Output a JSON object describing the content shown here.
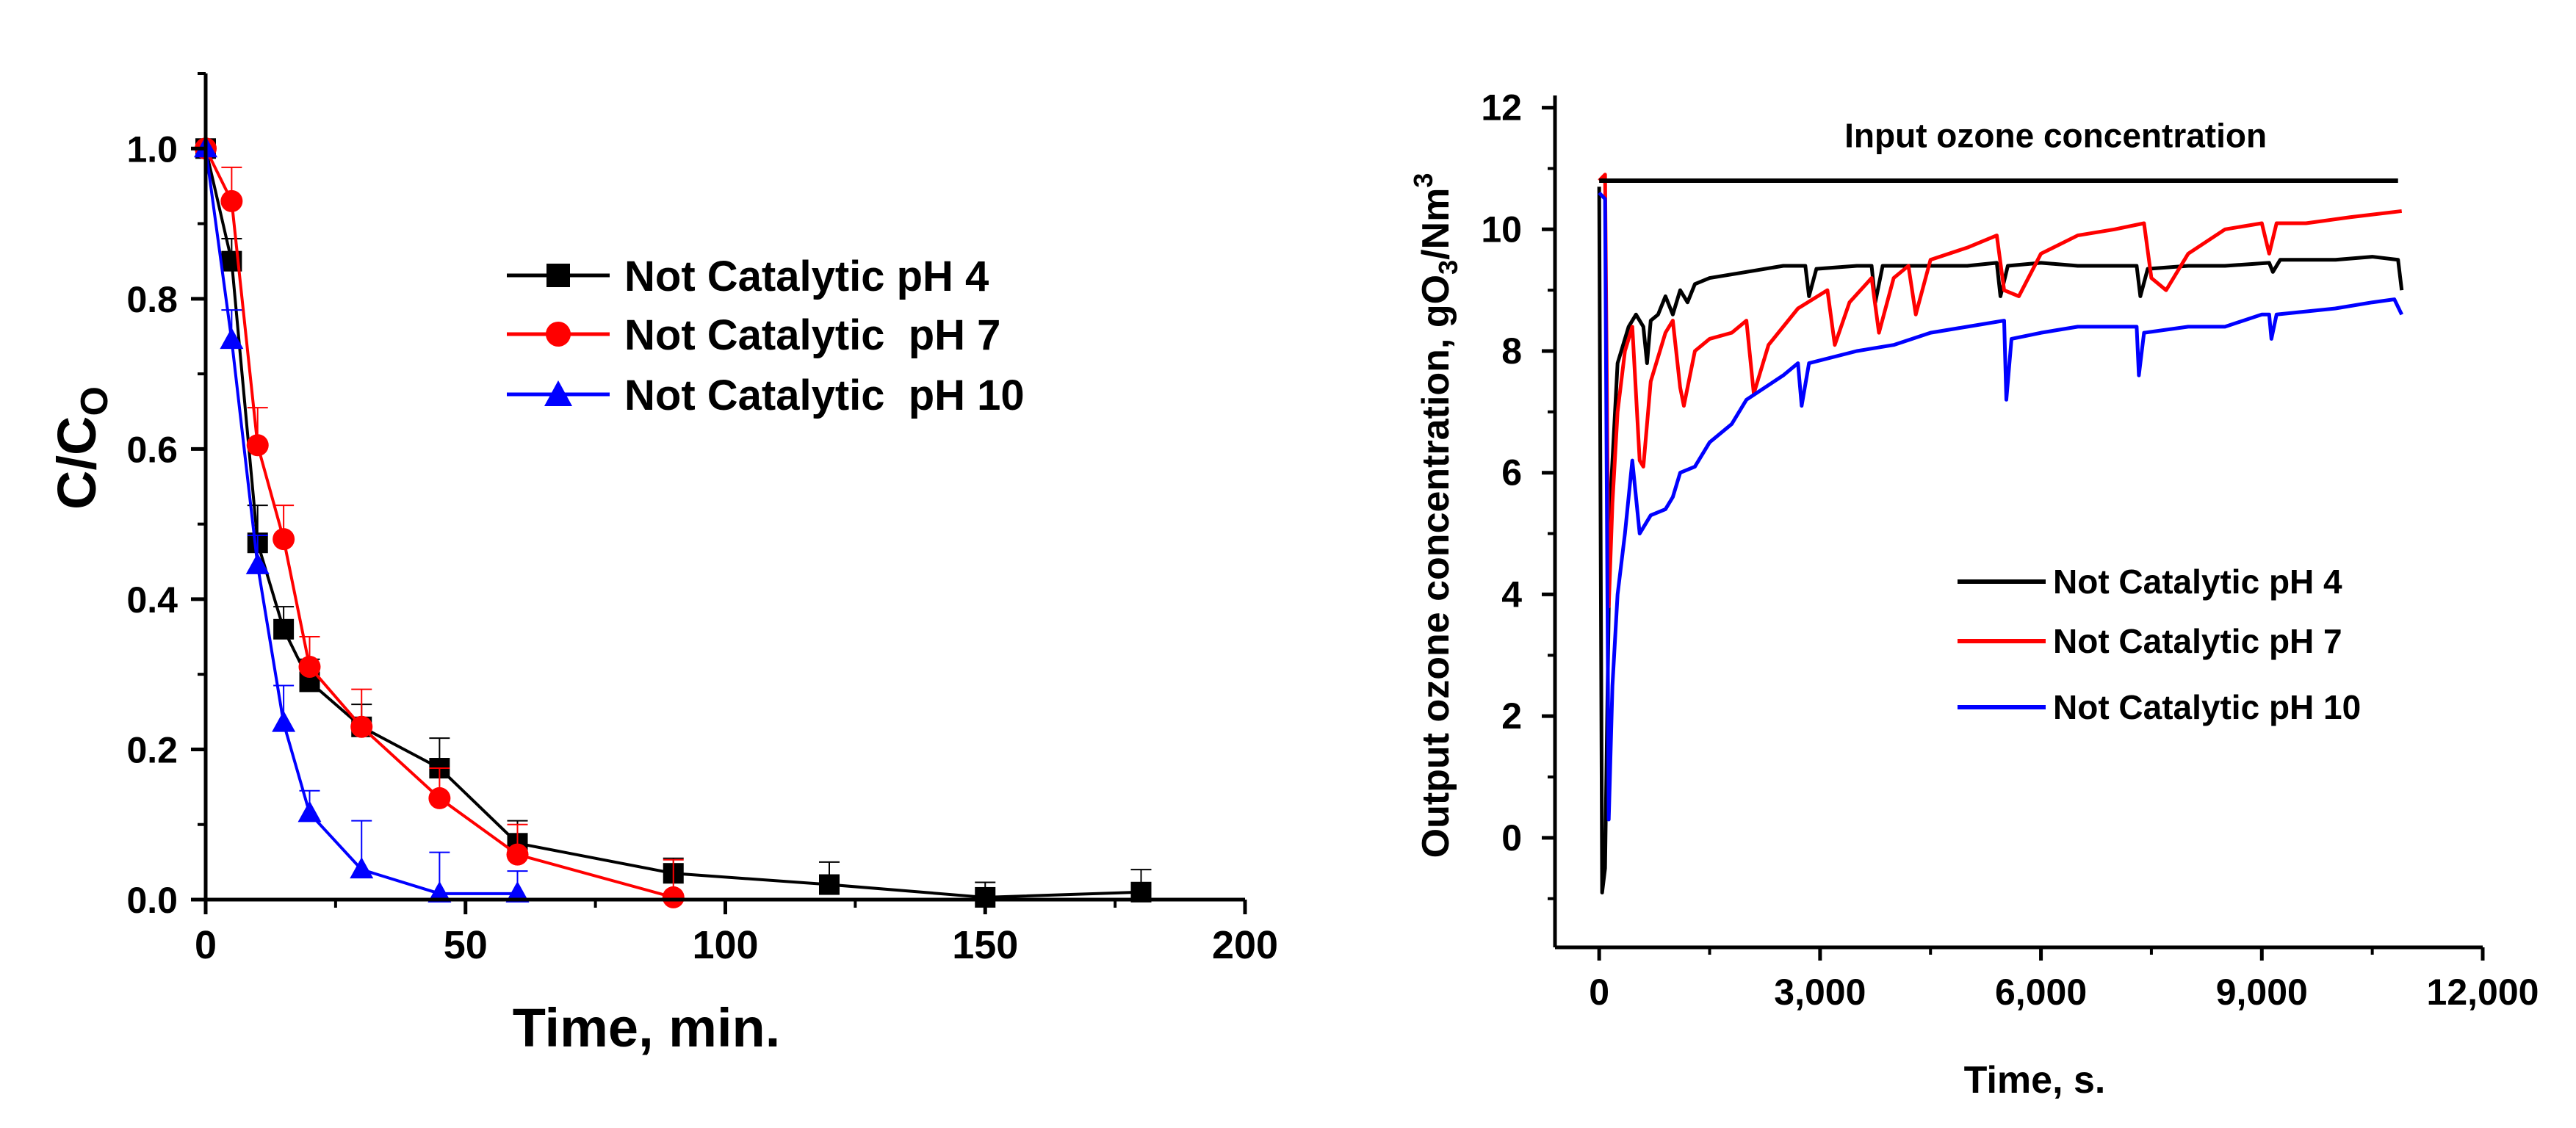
{
  "chart_data": [
    {
      "type": "line",
      "title": "",
      "xlabel": "Time, min.",
      "ylabel": "C/C",
      "ylabel_sub": "O",
      "xlim": [
        0,
        200
      ],
      "ylim": [
        0,
        1.1
      ],
      "x_ticks": [
        0,
        50,
        100,
        150,
        200
      ],
      "x_tick_labels": [
        "0",
        "50",
        "100",
        "150",
        "200"
      ],
      "y_ticks": [
        0,
        0.2,
        0.4,
        0.6,
        0.8,
        1.0
      ],
      "y_tick_labels": [
        "0.0",
        "0.2",
        "0.4",
        "0.6",
        "0.8",
        "1.0"
      ],
      "grid": false,
      "legend_position": "upper-right",
      "series": [
        {
          "name": "Not Catalytic pH 4",
          "color": "#000000",
          "marker": "square",
          "x": [
            0,
            5,
            10,
            15,
            20,
            30,
            45,
            60,
            90,
            120,
            150,
            180
          ],
          "y": [
            1.0,
            0.85,
            0.475,
            0.36,
            0.29,
            0.23,
            0.175,
            0.075,
            0.035,
            0.02,
            0.003,
            0.01
          ],
          "error": [
            0.0,
            0.03,
            0.05,
            0.03,
            0.03,
            0.03,
            0.04,
            0.03,
            0.02,
            0.03,
            0.02,
            0.03
          ]
        },
        {
          "name": "Not Catalytic  pH 7",
          "color": "#ff0000",
          "marker": "circle",
          "x": [
            0,
            5,
            10,
            15,
            20,
            30,
            45,
            60,
            90
          ],
          "y": [
            1.0,
            0.93,
            0.605,
            0.48,
            0.31,
            0.23,
            0.135,
            0.06,
            0.003
          ],
          "error": [
            0.0,
            0.045,
            0.05,
            0.045,
            0.04,
            0.05,
            0.04,
            0.04,
            0.05
          ]
        },
        {
          "name": "Not Catalytic  pH 10",
          "color": "#0000ff",
          "marker": "triangle",
          "x": [
            0,
            5,
            10,
            15,
            20,
            30,
            45,
            60
          ],
          "y": [
            1.0,
            0.745,
            0.445,
            0.235,
            0.115,
            0.04,
            0.008,
            0.008
          ],
          "error": [
            0.0,
            0.04,
            0.04,
            0.05,
            0.03,
            0.065,
            0.055,
            0.03
          ]
        }
      ]
    },
    {
      "type": "line",
      "title": "",
      "xlabel": "Time, s.",
      "ylabel": "Output ozone concentration, gO",
      "ylabel_sub": "3",
      "ylabel_tail": "/Nm",
      "ylabel_sup": "3",
      "xlim": [
        -600,
        12000
      ],
      "ylim": [
        -1.8,
        12.2
      ],
      "x_ticks": [
        0,
        3000,
        6000,
        9000,
        12000
      ],
      "x_tick_labels": [
        "0",
        "3,000",
        "6,000",
        "9,000",
        "12,000"
      ],
      "y_ticks": [
        0,
        2,
        4,
        6,
        8,
        10,
        12
      ],
      "y_tick_labels": [
        "0",
        "2",
        "4",
        "6",
        "8",
        "10",
        "12"
      ],
      "grid": false,
      "legend_position": "lower-right",
      "annotation": {
        "text": "Input ozone concentration",
        "x": 6200,
        "y": 11.35
      },
      "reference_line": {
        "x": [
          0,
          10850
        ],
        "y": 10.8,
        "color": "#000000"
      },
      "series": [
        {
          "name": "Not Catalytic pH 4",
          "color": "#000000",
          "x": [
            0,
            40,
            80,
            150,
            250,
            400,
            500,
            600,
            650,
            700,
            800,
            900,
            1000,
            1100,
            1200,
            1300,
            1500,
            2000,
            2500,
            2800,
            2850,
            2950,
            3500,
            3700,
            3750,
            3850,
            4500,
            5000,
            5400,
            5450,
            5550,
            6000,
            6500,
            7000,
            7300,
            7350,
            7450,
            8000,
            8500,
            9100,
            9150,
            9250,
            10000,
            10500,
            10850,
            10900
          ],
          "y": [
            10.7,
            -0.9,
            -0.5,
            5.5,
            7.8,
            8.4,
            8.6,
            8.4,
            7.8,
            8.5,
            8.6,
            8.9,
            8.6,
            9.0,
            8.8,
            9.1,
            9.2,
            9.3,
            9.4,
            9.4,
            8.9,
            9.35,
            9.4,
            9.4,
            8.8,
            9.4,
            9.4,
            9.4,
            9.45,
            8.9,
            9.4,
            9.45,
            9.4,
            9.4,
            9.4,
            8.9,
            9.35,
            9.4,
            9.4,
            9.45,
            9.3,
            9.5,
            9.5,
            9.55,
            9.5,
            9.0
          ]
        },
        {
          "name": "Not Catalytic pH 7",
          "color": "#ff0000",
          "x": [
            0,
            80,
            130,
            180,
            250,
            350,
            450,
            550,
            600,
            700,
            900,
            1000,
            1100,
            1150,
            1300,
            1500,
            1800,
            2000,
            2100,
            2300,
            2700,
            3100,
            3200,
            3400,
            3700,
            3800,
            4000,
            4200,
            4300,
            4500,
            5000,
            5400,
            5500,
            5700,
            6000,
            6500,
            7000,
            7400,
            7500,
            7700,
            8000,
            8500,
            9000,
            9100,
            9200,
            9600,
            10200,
            10900
          ],
          "y": [
            10.8,
            10.9,
            3.8,
            5.5,
            7.0,
            8.0,
            8.4,
            6.2,
            6.1,
            7.5,
            8.3,
            8.5,
            7.4,
            7.1,
            8.0,
            8.2,
            8.3,
            8.5,
            7.3,
            8.1,
            8.7,
            9.0,
            8.1,
            8.8,
            9.2,
            8.3,
            9.2,
            9.4,
            8.6,
            9.5,
            9.7,
            9.9,
            9.0,
            8.9,
            9.6,
            9.9,
            10.0,
            10.1,
            9.2,
            9.0,
            9.6,
            10.0,
            10.1,
            9.6,
            10.1,
            10.1,
            10.2,
            10.3
          ]
        },
        {
          "name": "Not Catalytic pH 10",
          "color": "#0000ff",
          "x": [
            0,
            80,
            130,
            180,
            250,
            350,
            450,
            550,
            600,
            700,
            900,
            1000,
            1100,
            1300,
            1500,
            1800,
            2000,
            2500,
            2700,
            2750,
            2850,
            3500,
            4000,
            4500,
            5000,
            5500,
            5530,
            5600,
            6000,
            6500,
            7000,
            7300,
            7330,
            7400,
            8000,
            8500,
            9000,
            9100,
            9130,
            9200,
            10000,
            10500,
            10800,
            10900
          ],
          "y": [
            10.6,
            10.5,
            0.3,
            2.5,
            4.0,
            5.0,
            6.2,
            5.0,
            5.1,
            5.3,
            5.4,
            5.6,
            6.0,
            6.1,
            6.5,
            6.8,
            7.2,
            7.6,
            7.8,
            7.1,
            7.8,
            8.0,
            8.1,
            8.3,
            8.4,
            8.5,
            7.2,
            8.2,
            8.3,
            8.4,
            8.4,
            8.4,
            7.6,
            8.3,
            8.4,
            8.4,
            8.6,
            8.6,
            8.2,
            8.6,
            8.7,
            8.8,
            8.85,
            8.6
          ]
        }
      ]
    }
  ]
}
